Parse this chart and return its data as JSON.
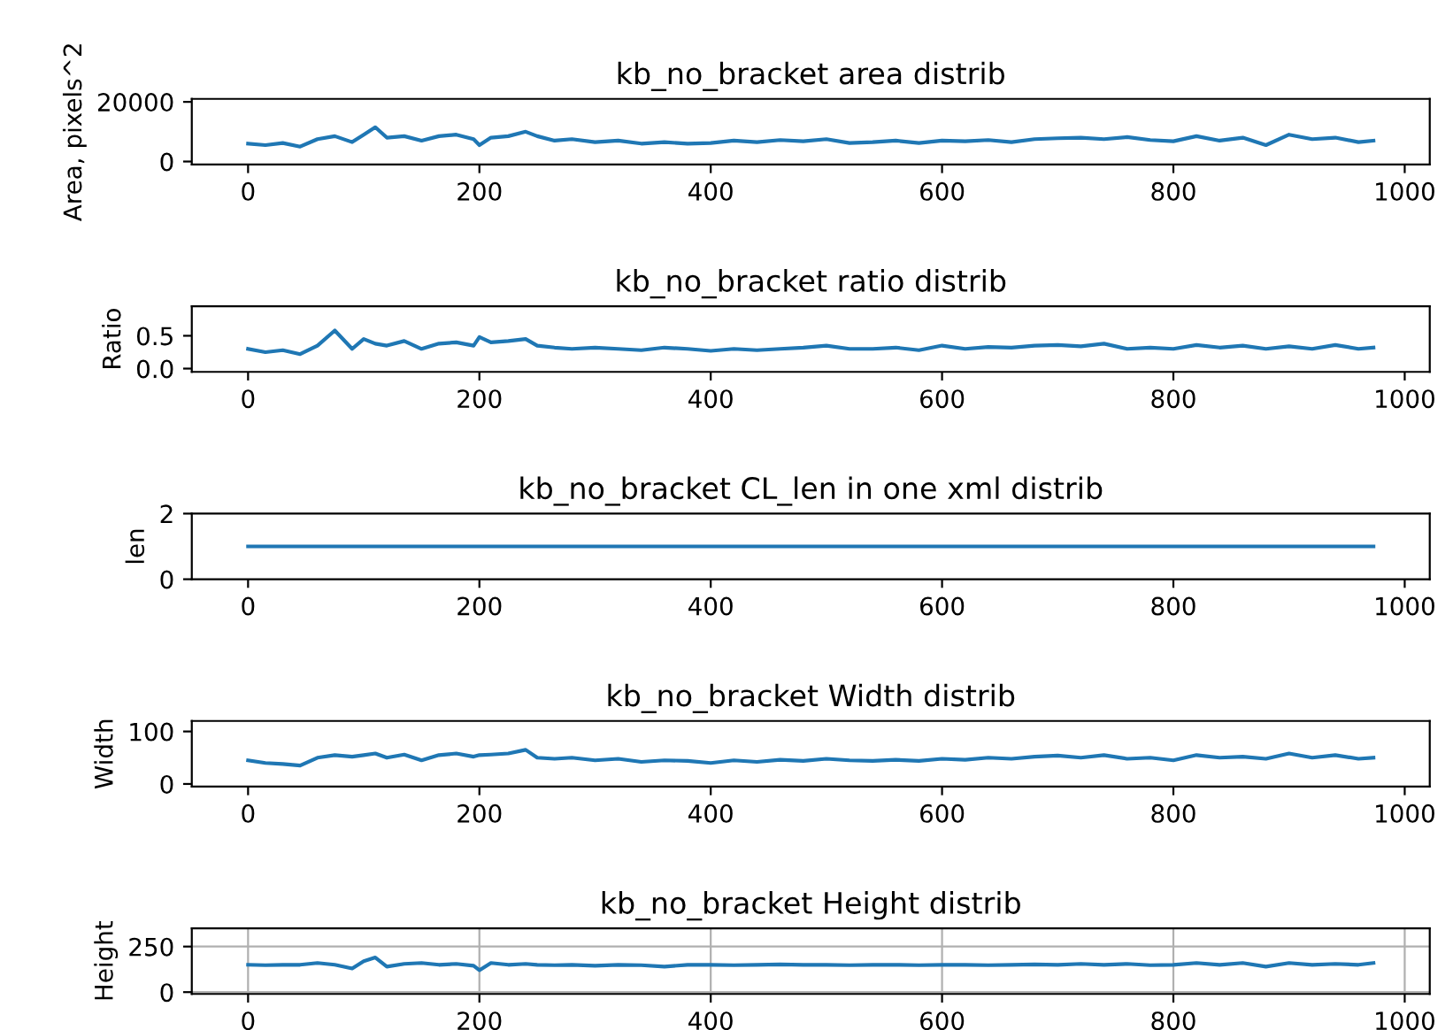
{
  "chart_data": [
    {
      "type": "line",
      "title": "kb_no_bracket area distrib",
      "ylabel": "Area, pixels^2",
      "xlim": [
        -48.65,
        1021.65
      ],
      "xticks": [
        0,
        200,
        400,
        600,
        800,
        1000
      ],
      "ylim": [
        -1000,
        21000
      ],
      "yticks": [
        0,
        20000
      ],
      "grid": false,
      "series": [
        {
          "color": "#1f77b4",
          "x": [
            0,
            15,
            30,
            45,
            60,
            75,
            90,
            100,
            110,
            120,
            135,
            150,
            165,
            180,
            195,
            200,
            210,
            225,
            240,
            250,
            265,
            280,
            300,
            320,
            340,
            360,
            380,
            400,
            420,
            440,
            460,
            480,
            500,
            520,
            540,
            560,
            580,
            600,
            620,
            640,
            660,
            680,
            700,
            720,
            740,
            760,
            780,
            800,
            820,
            840,
            860,
            880,
            900,
            920,
            940,
            960,
            973
          ],
          "values": [
            6000,
            5500,
            6200,
            5000,
            7500,
            8500,
            6500,
            9000,
            11500,
            8000,
            8500,
            7000,
            8500,
            9000,
            7500,
            5500,
            8000,
            8500,
            10000,
            8500,
            7000,
            7500,
            6500,
            7000,
            6000,
            6500,
            6000,
            6200,
            7000,
            6500,
            7200,
            6800,
            7500,
            6200,
            6500,
            7000,
            6200,
            7000,
            6800,
            7200,
            6500,
            7500,
            7800,
            8000,
            7500,
            8200,
            7200,
            6800,
            8500,
            7000,
            8000,
            5500,
            9000,
            7500,
            8000,
            6500,
            7000
          ]
        }
      ]
    },
    {
      "type": "line",
      "title": "kb_no_bracket ratio distrib",
      "ylabel": "Ratio",
      "xlim": [
        -48.65,
        1021.65
      ],
      "xticks": [
        0,
        200,
        400,
        600,
        800,
        1000
      ],
      "ylim": [
        -0.05,
        0.95
      ],
      "yticks": [
        {
          "value": 0,
          "label": "0.0"
        },
        0.5
      ],
      "grid": false,
      "series": [
        {
          "color": "#1f77b4",
          "x": [
            0,
            15,
            30,
            45,
            60,
            75,
            90,
            100,
            110,
            120,
            135,
            150,
            165,
            180,
            195,
            200,
            210,
            225,
            240,
            250,
            265,
            280,
            300,
            320,
            340,
            360,
            380,
            400,
            420,
            440,
            460,
            480,
            500,
            520,
            540,
            560,
            580,
            600,
            620,
            640,
            660,
            680,
            700,
            720,
            740,
            760,
            780,
            800,
            820,
            840,
            860,
            880,
            900,
            920,
            940,
            960,
            973
          ],
          "values": [
            0.3,
            0.25,
            0.28,
            0.22,
            0.35,
            0.58,
            0.3,
            0.45,
            0.38,
            0.35,
            0.42,
            0.3,
            0.38,
            0.4,
            0.35,
            0.48,
            0.4,
            0.42,
            0.45,
            0.35,
            0.32,
            0.3,
            0.32,
            0.3,
            0.28,
            0.32,
            0.3,
            0.27,
            0.3,
            0.28,
            0.3,
            0.32,
            0.35,
            0.3,
            0.3,
            0.32,
            0.28,
            0.35,
            0.3,
            0.33,
            0.32,
            0.35,
            0.36,
            0.34,
            0.38,
            0.3,
            0.32,
            0.3,
            0.36,
            0.32,
            0.35,
            0.3,
            0.34,
            0.3,
            0.36,
            0.3,
            0.32
          ]
        }
      ]
    },
    {
      "type": "line",
      "title": "kb_no_bracket CL_len in one xml distrib",
      "ylabel": "len",
      "xlim": [
        -48.65,
        1021.65
      ],
      "xticks": [
        0,
        200,
        400,
        600,
        800,
        1000
      ],
      "ylim": [
        0,
        2
      ],
      "yticks": [
        0,
        2
      ],
      "grid": false,
      "series": [
        {
          "color": "#1f77b4",
          "x": [
            0,
            973
          ],
          "values": [
            1,
            1
          ]
        }
      ]
    },
    {
      "type": "line",
      "title": "kb_no_bracket Width distrib",
      "ylabel": "Width",
      "xlim": [
        -48.65,
        1021.65
      ],
      "xticks": [
        0,
        200,
        400,
        600,
        800,
        1000
      ],
      "ylim": [
        -5,
        120
      ],
      "yticks": [
        0,
        100
      ],
      "grid": false,
      "series": [
        {
          "color": "#1f77b4",
          "x": [
            0,
            15,
            30,
            45,
            60,
            75,
            90,
            100,
            110,
            120,
            135,
            150,
            165,
            180,
            195,
            200,
            210,
            225,
            240,
            250,
            265,
            280,
            300,
            320,
            340,
            360,
            380,
            400,
            420,
            440,
            460,
            480,
            500,
            520,
            540,
            560,
            580,
            600,
            620,
            640,
            660,
            680,
            700,
            720,
            740,
            760,
            780,
            800,
            820,
            840,
            860,
            880,
            900,
            920,
            940,
            960,
            973
          ],
          "values": [
            45,
            40,
            38,
            35,
            50,
            55,
            52,
            55,
            58,
            50,
            56,
            45,
            55,
            58,
            52,
            55,
            56,
            58,
            65,
            50,
            48,
            50,
            45,
            48,
            42,
            45,
            44,
            40,
            45,
            42,
            46,
            44,
            48,
            45,
            44,
            46,
            44,
            48,
            46,
            50,
            48,
            52,
            54,
            50,
            55,
            48,
            50,
            45,
            55,
            50,
            52,
            48,
            58,
            50,
            55,
            48,
            50
          ]
        }
      ]
    },
    {
      "type": "line",
      "title": "kb_no_bracket Height distrib",
      "ylabel": "Height",
      "xlim": [
        -48.65,
        1021.65
      ],
      "xticks": [
        0,
        200,
        400,
        600,
        800,
        1000
      ],
      "ylim": [
        -10,
        350
      ],
      "yticks": [
        0,
        250
      ],
      "grid": true,
      "series": [
        {
          "color": "#1f77b4",
          "x": [
            0,
            15,
            30,
            45,
            60,
            75,
            90,
            100,
            110,
            120,
            135,
            150,
            165,
            180,
            195,
            200,
            210,
            225,
            240,
            250,
            265,
            280,
            300,
            320,
            340,
            360,
            380,
            400,
            420,
            440,
            460,
            480,
            500,
            520,
            540,
            560,
            580,
            600,
            620,
            640,
            660,
            680,
            700,
            720,
            740,
            760,
            780,
            800,
            820,
            840,
            860,
            880,
            900,
            920,
            940,
            960,
            973
          ],
          "values": [
            150,
            148,
            150,
            150,
            160,
            150,
            130,
            170,
            190,
            140,
            155,
            160,
            150,
            155,
            145,
            120,
            160,
            150,
            155,
            150,
            148,
            150,
            145,
            150,
            148,
            140,
            150,
            150,
            148,
            150,
            152,
            150,
            150,
            148,
            150,
            150,
            148,
            150,
            150,
            148,
            150,
            152,
            150,
            155,
            150,
            155,
            148,
            150,
            160,
            150,
            160,
            140,
            160,
            150,
            155,
            150,
            160
          ]
        }
      ]
    }
  ]
}
